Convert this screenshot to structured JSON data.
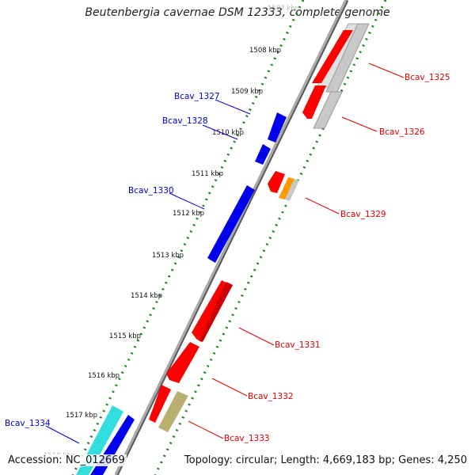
{
  "title": "Beutenbergia cavernae DSM 12333, complete genome",
  "accession": "Accession: NC_012669",
  "topology": "Topology: circular; Length: 4,669,183 bp; Genes: 4,250",
  "colors": {
    "backbone": "#888888",
    "ticks": "#1e7a1e",
    "forward_label": "#0000cc",
    "reverse_label": "#dd0000",
    "red": "#ff0000",
    "blue": "#0000ee",
    "gray": "#c8c8c8",
    "orange": "#ff9900",
    "khaki": "#b8b070",
    "cyan": "#33dddd"
  },
  "kbp_labels": [
    "1507 kbp",
    "1508 kbp",
    "1509 kbp",
    "1510 kbp",
    "1511 kbp",
    "1512 kbp",
    "1513 kbp",
    "1514 kbp",
    "1515 kbp",
    "1516 kbp",
    "1517 kbp",
    "1518 kbp"
  ],
  "gene_labels": {
    "bcav_1325": "Bcav_1325",
    "bcav_1326": "Bcav_1326",
    "bcav_1327": "Bcav_1327",
    "bcav_1328": "Bcav_1328",
    "bcav_1329": "Bcav_1329",
    "bcav_1330": "Bcav_1330",
    "bcav_1331": "Bcav_1331",
    "bcav_1332": "Bcav_1332",
    "bcav_1333": "Bcav_1333",
    "bcav_1334": "Bcav_1334"
  }
}
